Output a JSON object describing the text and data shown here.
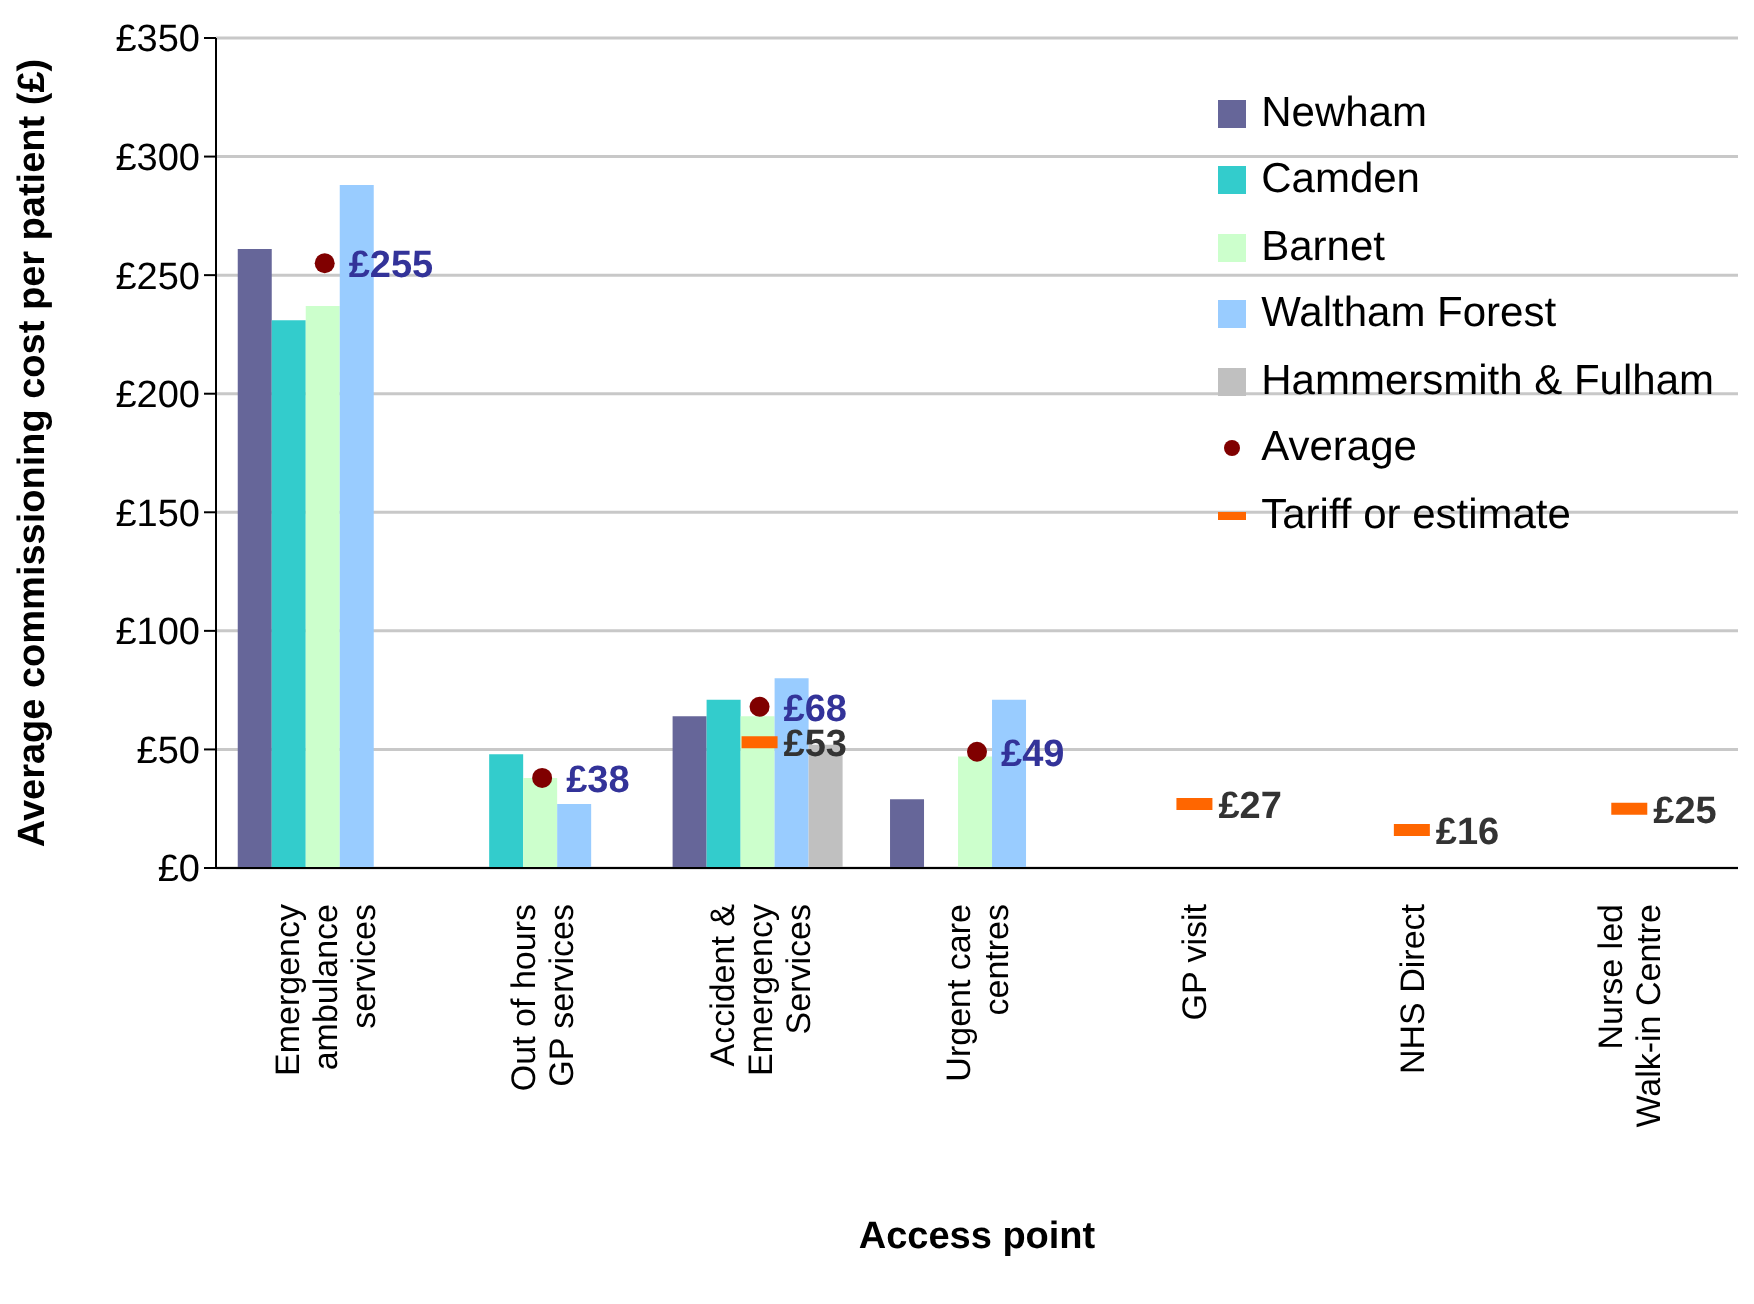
{
  "chart_data": {
    "type": "bar",
    "xlabel": "Access point",
    "ylabel": "Average commissioning cost per patient (£)",
    "categories": [
      "Emergency\nambulance\nservices",
      "Out of hours\nGP services",
      "Accident &\nEmergency\nServices",
      "Urgent care\ncentres",
      "GP visit",
      "NHS Direct",
      "Nurse led\nWalk-in Centre"
    ],
    "series": [
      {
        "name": "Newham",
        "color": "#666699",
        "values": [
          261,
          null,
          64,
          29,
          null,
          null,
          null
        ]
      },
      {
        "name": "Camden",
        "color": "#33cccc",
        "values": [
          231,
          48,
          71,
          null,
          null,
          null,
          null
        ]
      },
      {
        "name": "Barnet",
        "color": "#ccffcc",
        "values": [
          237,
          38,
          64,
          47,
          null,
          null,
          null
        ]
      },
      {
        "name": "Waltham Forest",
        "color": "#99ccff",
        "values": [
          288,
          27,
          80,
          71,
          null,
          null,
          null
        ]
      },
      {
        "name": "Hammersmith & Fulham",
        "color": "#c0c0c0",
        "values": [
          null,
          null,
          52,
          null,
          null,
          null,
          null
        ]
      },
      {
        "name": "Average",
        "type": "scatter",
        "marker": "circle",
        "color": "#800000",
        "values": [
          255,
          38,
          68,
          49,
          null,
          null,
          null
        ],
        "value_labels": [
          "£255",
          "£38",
          "£68",
          "£49",
          null,
          null,
          null
        ]
      },
      {
        "name": "Tariff or estimate",
        "type": "scatter",
        "color": "#ff6600",
        "values": [
          null,
          null,
          53,
          null,
          27,
          16,
          25
        ],
        "value_labels": [
          null,
          null,
          "£53",
          null,
          "£27",
          "£16",
          "£25"
        ]
      }
    ],
    "ylim": [
      0,
      350
    ],
    "yticks": [
      {
        "value": 0,
        "label": "£0"
      },
      {
        "value": 50,
        "label": "£50"
      },
      {
        "value": 100,
        "label": "£100"
      },
      {
        "value": 150,
        "label": "£150"
      },
      {
        "value": 200,
        "label": "£200"
      },
      {
        "value": 250,
        "label": "£250"
      },
      {
        "value": 300,
        "label": "£300"
      },
      {
        "value": 350,
        "label": "£350"
      }
    ],
    "grid": "y",
    "legend": "top right"
  }
}
